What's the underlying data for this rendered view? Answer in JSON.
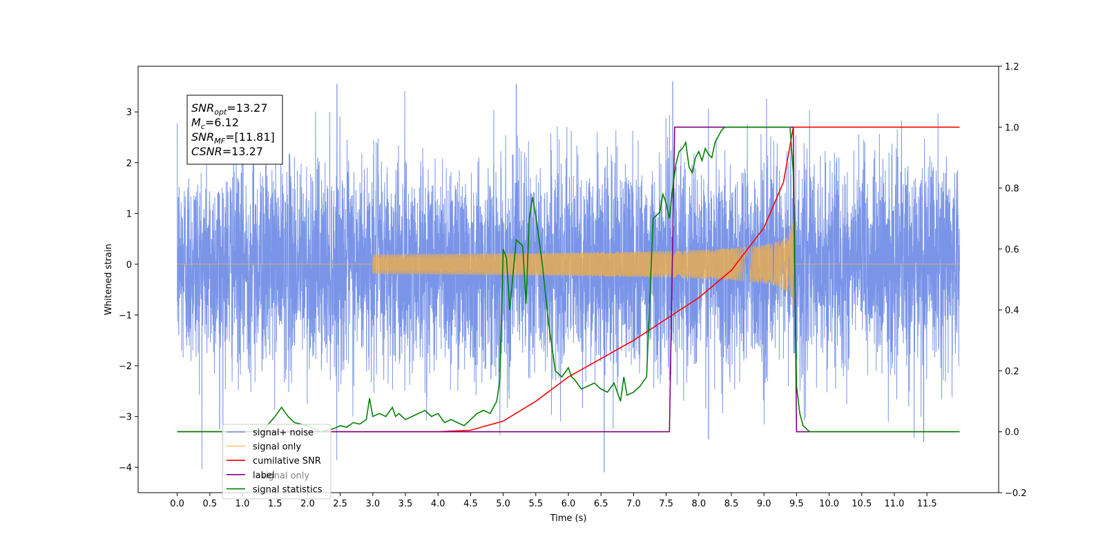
{
  "chart_data": {
    "type": "line",
    "xlabel": "Time (s)",
    "ylabel": "Whitened strain",
    "ylabel_right": "",
    "xlim": [
      -0.6,
      12.6
    ],
    "ylim": [
      -4.5,
      3.9
    ],
    "ylim_right": [
      -0.2,
      1.2
    ],
    "xticks": [
      0.0,
      0.5,
      1.0,
      1.5,
      2.0,
      2.5,
      3.0,
      3.5,
      4.0,
      4.5,
      5.0,
      5.5,
      6.0,
      6.5,
      7.0,
      7.5,
      8.0,
      8.5,
      9.0,
      9.5,
      10.0,
      10.5,
      11.0,
      11.5
    ],
    "xtick_labels": [
      "0.0",
      "0.5",
      "1.0",
      "1.5",
      "2.0",
      "2.5",
      "3.0",
      "3.5",
      "4.0",
      "4.5",
      "5.0",
      "5.5",
      "6.0",
      "6.5",
      "7.0",
      "7.5",
      "8.0",
      "8.5",
      "9.0",
      "9.5",
      "10.0",
      "10.5",
      "11.0",
      "11.5"
    ],
    "yticks": [
      -4,
      -3,
      -2,
      -1,
      0,
      1,
      2,
      3
    ],
    "ytick_labels": [
      "−4",
      "−3",
      "−2",
      "−1",
      "0",
      "1",
      "2",
      "3"
    ],
    "yticks_right": [
      -0.2,
      0.0,
      0.2,
      0.4,
      0.6,
      0.8,
      1.0,
      1.2
    ],
    "ytick_labels_right": [
      "−0.2",
      "0.0",
      "0.2",
      "0.4",
      "0.6",
      "0.8",
      "1.0",
      "1.2"
    ],
    "grid": false,
    "legend_position": "lower-left",
    "series": [
      {
        "name": "signal+ noise",
        "axis": "left",
        "color": "#6b8ae6",
        "sample_rate_hz": 1024,
        "x_range": [
          0,
          12
        ],
        "envelope_sigma": 1.0,
        "extremes": [
          {
            "x": 6.55,
            "y": -4.1
          },
          {
            "x": 11.45,
            "y": -3.5
          },
          {
            "x": 8.15,
            "y": -3.45
          },
          {
            "x": 7.6,
            "y": 3.6
          },
          {
            "x": 5.2,
            "y": 3.55
          },
          {
            "x": 2.45,
            "y": 3.55
          },
          {
            "x": 0.65,
            "y": -3.25
          }
        ]
      },
      {
        "name": "signal only",
        "axis": "left",
        "color": "#f5b041",
        "chirp_start": 3.0,
        "chirp_end": 9.45,
        "amplitude_end": 1.0
      },
      {
        "name": "cumilative SNR",
        "axis": "right",
        "color": "#ff0000",
        "x": [
          0.0,
          4.0,
          4.5,
          5.0,
          5.5,
          6.0,
          6.5,
          7.0,
          7.5,
          8.0,
          8.5,
          9.0,
          9.3,
          9.45,
          9.46,
          12.0
        ],
        "y": [
          0.0,
          0.0,
          0.005,
          0.035,
          0.1,
          0.18,
          0.24,
          0.3,
          0.37,
          0.44,
          0.53,
          0.67,
          0.82,
          1.0,
          1.0,
          1.0
        ]
      },
      {
        "name": "label",
        "axis": "right",
        "color": "#800080",
        "x": [
          0.0,
          7.55,
          7.63,
          9.45,
          9.5,
          12.0
        ],
        "y": [
          0.0,
          0.0,
          1.0,
          1.0,
          0.0,
          0.0
        ]
      },
      {
        "name": "signal statistics",
        "axis": "right",
        "color": "#008000",
        "x": [
          0.0,
          0.5,
          1.0,
          1.2,
          1.3,
          1.5,
          1.6,
          1.7,
          1.8,
          2.0,
          2.2,
          2.4,
          2.5,
          2.6,
          2.7,
          2.8,
          2.9,
          2.95,
          3.0,
          3.1,
          3.2,
          3.3,
          3.35,
          3.4,
          3.5,
          3.6,
          3.7,
          3.8,
          3.9,
          4.0,
          4.1,
          4.2,
          4.3,
          4.4,
          4.5,
          4.55,
          4.6,
          4.7,
          4.8,
          4.9,
          4.95,
          5.0,
          5.05,
          5.1,
          5.2,
          5.3,
          5.35,
          5.4,
          5.45,
          5.5,
          5.55,
          5.6,
          5.7,
          5.8,
          5.9,
          6.0,
          6.05,
          6.1,
          6.2,
          6.3,
          6.4,
          6.5,
          6.6,
          6.7,
          6.8,
          6.85,
          6.9,
          7.0,
          7.1,
          7.2,
          7.3,
          7.4,
          7.45,
          7.5,
          7.55,
          7.6,
          7.65,
          7.7,
          7.75,
          7.8,
          7.85,
          7.9,
          7.95,
          8.0,
          8.05,
          8.1,
          8.15,
          8.2,
          8.25,
          8.3,
          8.35,
          8.4,
          8.5,
          8.6,
          8.7,
          8.8,
          9.0,
          9.2,
          9.4,
          9.45,
          9.5,
          9.55,
          9.6,
          9.65,
          9.7,
          9.75,
          9.8,
          10.0,
          12.0
        ],
        "y": [
          0.0,
          0.0,
          0.0,
          0.0,
          0.0,
          0.05,
          0.08,
          0.05,
          0.03,
          0.02,
          0.0,
          0.01,
          0.02,
          0.015,
          0.03,
          0.025,
          0.04,
          0.11,
          0.05,
          0.06,
          0.05,
          0.08,
          0.05,
          0.06,
          0.04,
          0.05,
          0.06,
          0.07,
          0.05,
          0.06,
          0.03,
          0.04,
          0.03,
          0.02,
          0.04,
          0.05,
          0.06,
          0.07,
          0.06,
          0.1,
          0.17,
          0.6,
          0.57,
          0.4,
          0.63,
          0.61,
          0.42,
          0.7,
          0.77,
          0.71,
          0.63,
          0.55,
          0.35,
          0.2,
          0.18,
          0.21,
          0.18,
          0.17,
          0.14,
          0.15,
          0.16,
          0.14,
          0.13,
          0.16,
          0.1,
          0.18,
          0.12,
          0.13,
          0.15,
          0.18,
          0.7,
          0.72,
          0.78,
          0.75,
          0.7,
          0.8,
          0.88,
          0.92,
          0.93,
          0.95,
          0.87,
          0.85,
          0.9,
          0.92,
          0.89,
          0.93,
          0.91,
          0.9,
          0.95,
          0.97,
          0.99,
          1.0,
          1.0,
          1.0,
          1.0,
          1.0,
          1.0,
          1.0,
          1.0,
          0.85,
          0.15,
          0.06,
          0.02,
          0.01,
          0.0,
          0.0,
          0.0,
          0.0,
          0.0
        ]
      }
    ],
    "legend_overlap_text": "signal only",
    "annotation": [
      {
        "name": "SNR",
        "sub": "opt",
        "value": "=13.27"
      },
      {
        "name": "M",
        "sub": "c",
        "value": "=6.12"
      },
      {
        "name": "SNR",
        "sub": "MF",
        "value": "=[11.81]"
      },
      {
        "name": "CSNR",
        "sub": "",
        "value": "=13.27"
      }
    ]
  }
}
